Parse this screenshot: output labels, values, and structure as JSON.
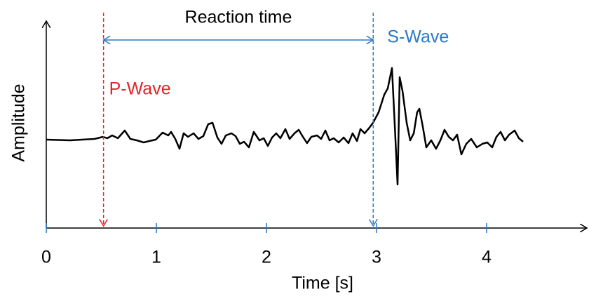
{
  "chart_data": {
    "type": "line",
    "xlabel": "Time [s]",
    "ylabel": "Amplitude",
    "xlim": [
      0,
      4.9
    ],
    "ylim": [
      -126,
      126
    ],
    "xticks": [
      0,
      1,
      2,
      3,
      4
    ],
    "tick_color": "#2979c9",
    "series": [
      {
        "color": "#000000",
        "x": [
          0,
          0.217,
          0.439,
          0.516,
          0.554,
          0.599,
          0.65,
          0.713,
          0.764,
          0.822,
          0.885,
          0.936,
          0.994,
          1.057,
          1.108,
          1.134,
          1.172,
          1.21,
          1.248,
          1.287,
          1.338,
          1.382,
          1.427,
          1.471,
          1.51,
          1.554,
          1.592,
          1.631,
          1.682,
          1.72,
          1.758,
          1.796,
          1.841,
          1.885,
          1.936,
          1.975,
          2.013,
          2.051,
          2.089,
          2.127,
          2.172,
          2.21,
          2.255,
          2.293,
          2.331,
          2.369,
          2.408,
          2.459,
          2.497,
          2.535,
          2.573,
          2.611,
          2.656,
          2.701,
          2.745,
          2.783,
          2.822,
          2.854,
          2.892,
          2.93,
          2.968,
          3.019,
          3.07,
          3.102,
          3.14,
          3.166,
          3.191,
          3.21,
          3.236,
          3.274,
          3.306,
          3.338,
          3.369,
          3.389,
          3.42,
          3.452,
          3.497,
          3.541,
          3.58,
          3.618,
          3.656,
          3.694,
          3.732,
          3.771,
          3.815,
          3.86,
          3.911,
          3.962,
          4.006,
          4.051,
          4.089,
          4.127,
          4.166,
          4.204,
          4.255,
          4.293,
          4.331
        ],
        "values": [
          0,
          -1,
          1,
          4,
          2,
          6,
          2,
          13,
          1,
          -1,
          -4,
          -2,
          0,
          10,
          6,
          11,
          1,
          -13,
          9,
          4,
          9,
          1,
          5,
          22,
          24,
          3,
          -6,
          6,
          9,
          5,
          -6,
          -3,
          -11,
          11,
          -1,
          2,
          -9,
          3,
          9,
          2,
          15,
          1,
          9,
          14,
          4,
          -5,
          4,
          6,
          1,
          13,
          -1,
          2,
          -4,
          3,
          -5,
          9,
          -2,
          15,
          9,
          16,
          24,
          39,
          64,
          73,
          102,
          19,
          -64,
          89,
          69,
          24,
          -1,
          9,
          39,
          44,
          19,
          -11,
          -1,
          -13,
          -1,
          14,
          4,
          -1,
          7,
          -21,
          -6,
          1,
          -11,
          -6,
          -4,
          -11,
          4,
          11,
          -1,
          7,
          13,
          2,
          -3
        ]
      }
    ],
    "annotations": [
      {
        "label": "P-Wave",
        "x": 0.52,
        "color": "#e8202a"
      },
      {
        "label": "S-Wave",
        "x": 2.97,
        "color": "#2979c9"
      }
    ],
    "span": {
      "label": "Reaction time",
      "color": "#2979c9"
    }
  }
}
